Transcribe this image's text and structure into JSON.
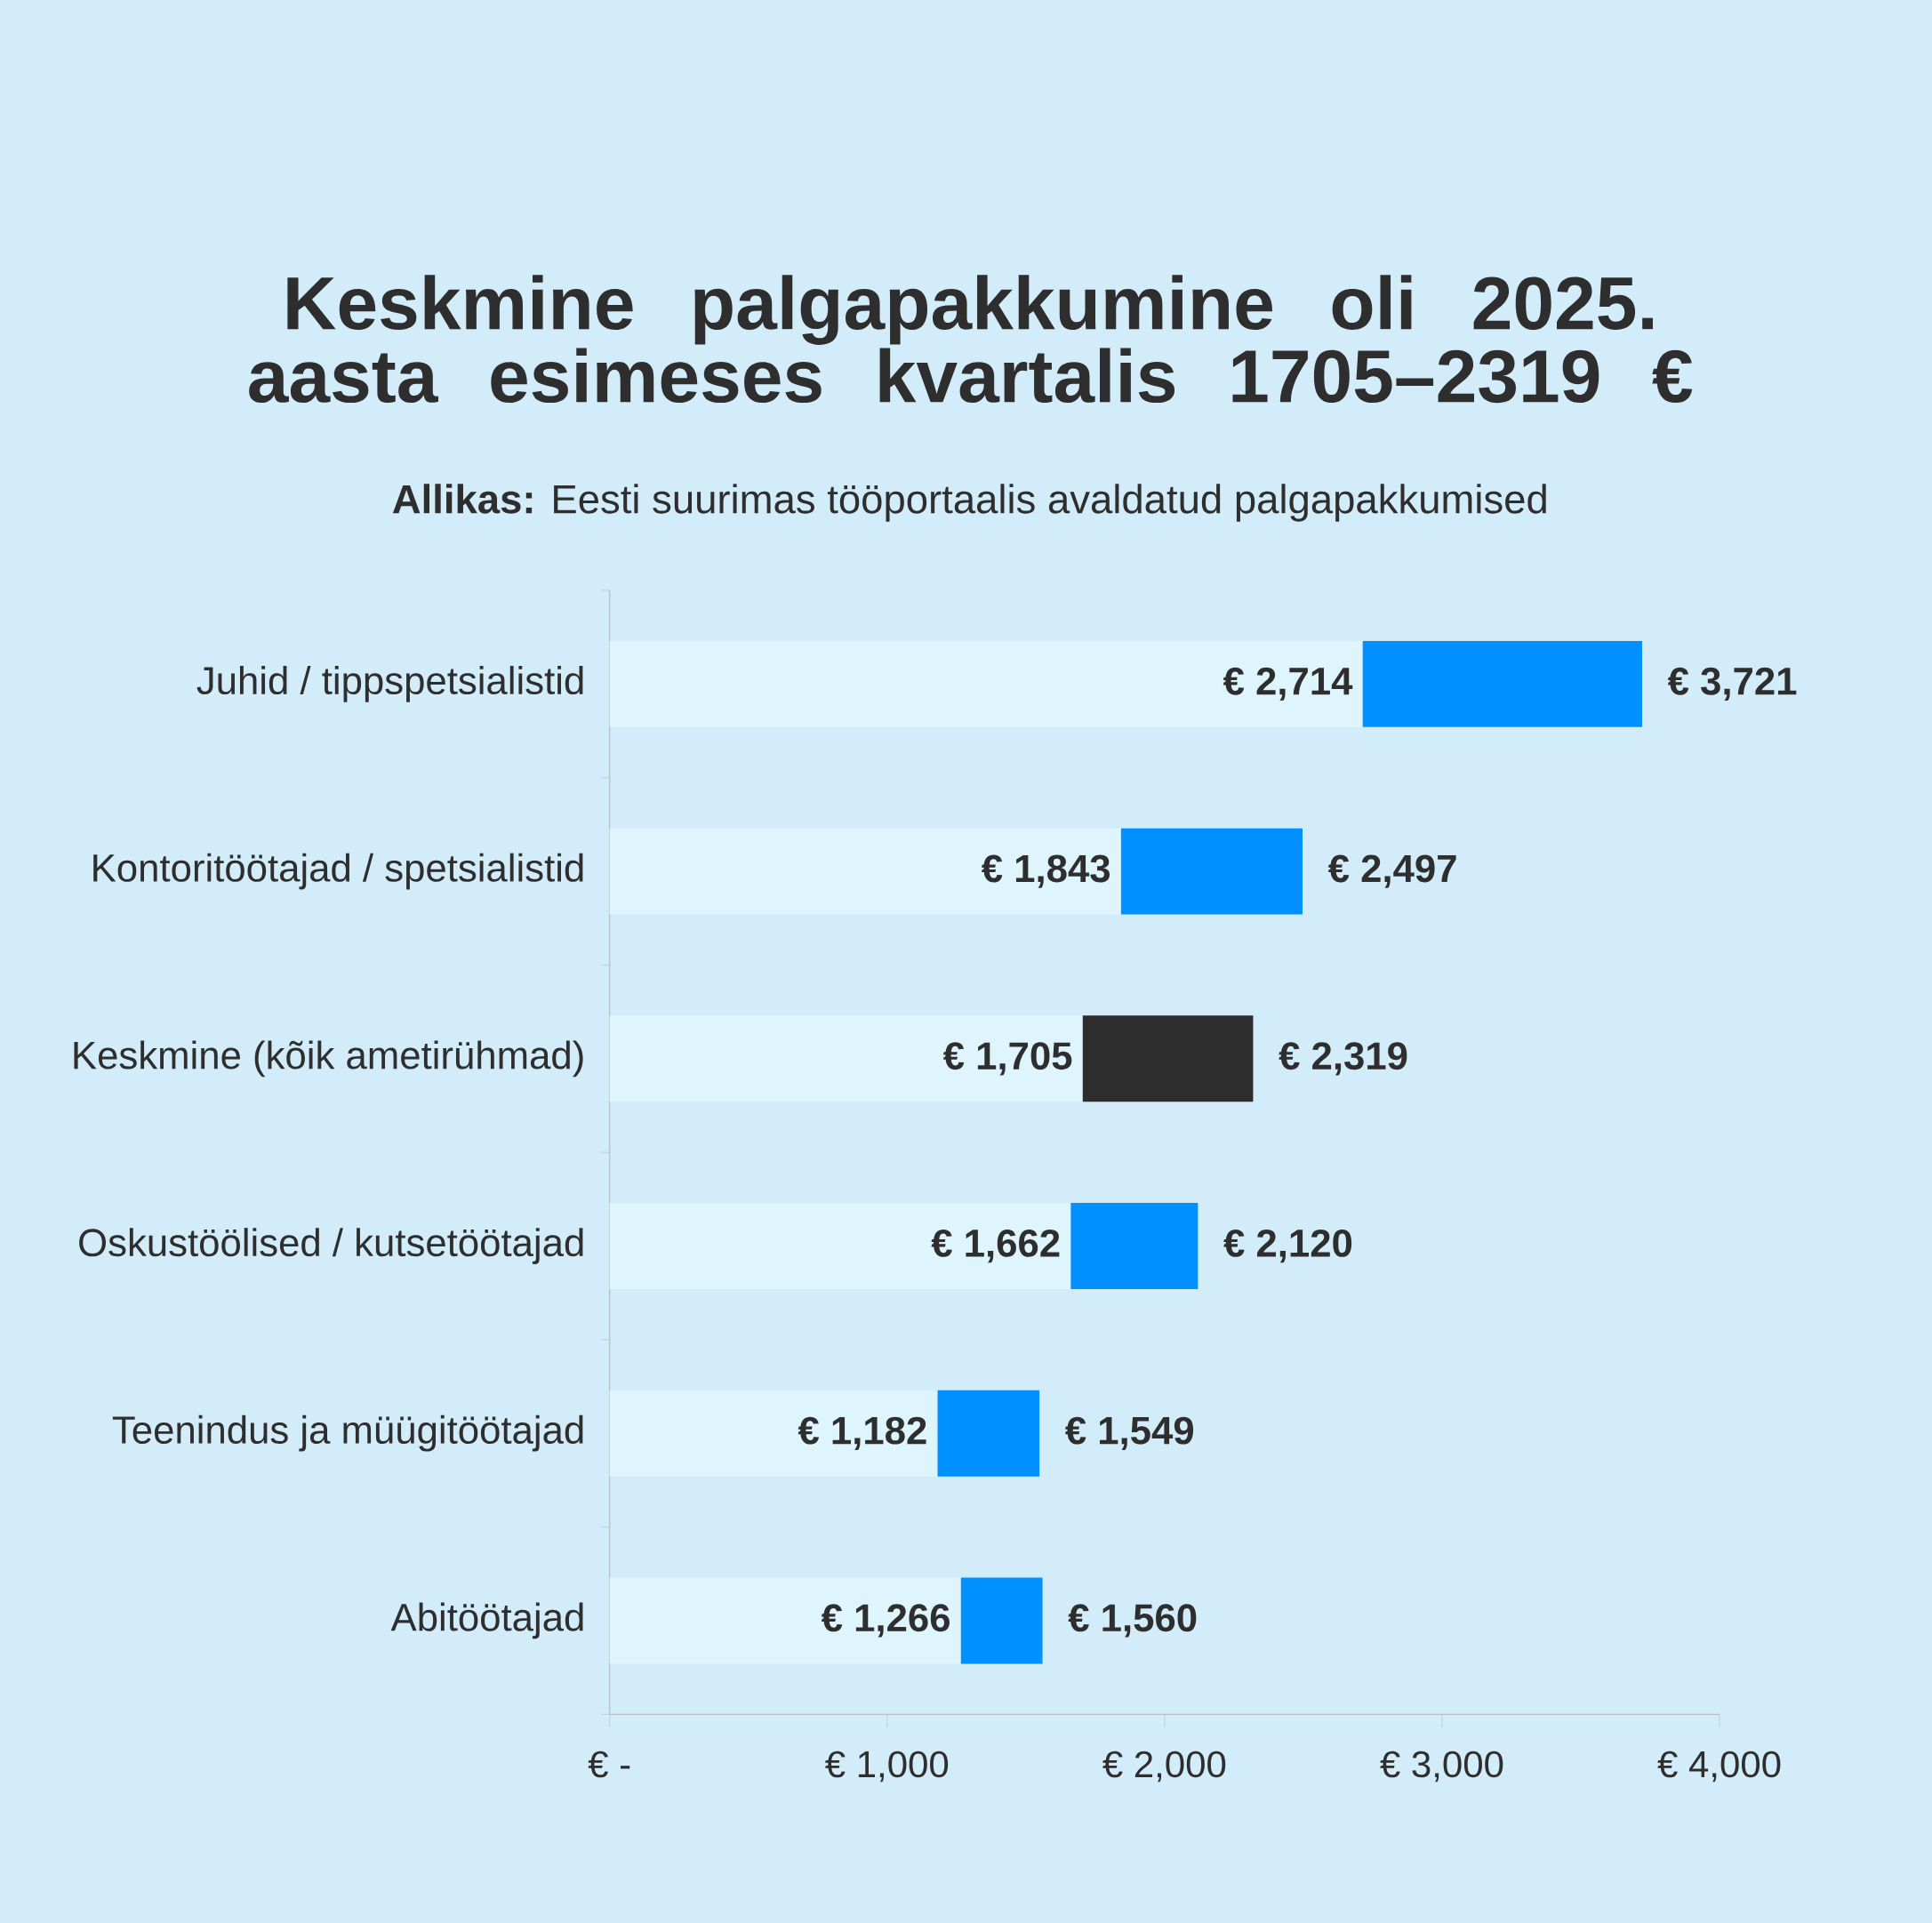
{
  "chart_data": {
    "type": "bar",
    "orientation": "horizontal",
    "stacked": true,
    "title": "Keskmine palgapakkumine oli 2025. aasta esimeses kvartalis 1705–2319 €",
    "subtitle": "**Allikas:** Eesti suurimas tööportaalis avaldatud palgapakkumised",
    "categories": [
      "Juhid / tippspetsialistid",
      "Kontoritöötajad / spetsialistid",
      "Keskmine (kõik ametirühmad)",
      "Oskustöölised / kutsetöötajad",
      "Teenindus ja müügitöötajad",
      "Abitöötajad"
    ],
    "series": [
      {
        "color": "#dff5fd",
        "values": [
          2714,
          1843,
          1705,
          1662,
          1182,
          1266
        ],
        "value_labels": [
          "€ 2,714",
          "€ 1,843",
          "€ 1,705",
          "€ 1,662",
          "€ 1,182",
          "€ 1,266"
        ]
      },
      {
        "colors": [
          "#0090ff",
          "#0090ff",
          "#2d2d2d",
          "#0090ff",
          "#0090ff",
          "#0090ff"
        ],
        "values": [
          1007,
          654,
          614,
          458,
          367,
          294
        ]
      }
    ],
    "totals": [
      "€ 3,721",
      "€ 2,497",
      "€ 2,319",
      "€ 2,120",
      "€ 1,549",
      "€ 1,560"
    ],
    "xlim": [
      0,
      4000
    ],
    "xticks": [
      {
        "value": 0,
        "label": "€ -"
      },
      {
        "value": 1000,
        "label": "€ 1,000"
      },
      {
        "value": 2000,
        "label": "€ 2,000"
      },
      {
        "value": 3000,
        "label": "€ 3,000"
      },
      {
        "value": 4000,
        "label": "€ 4,000"
      }
    ]
  }
}
